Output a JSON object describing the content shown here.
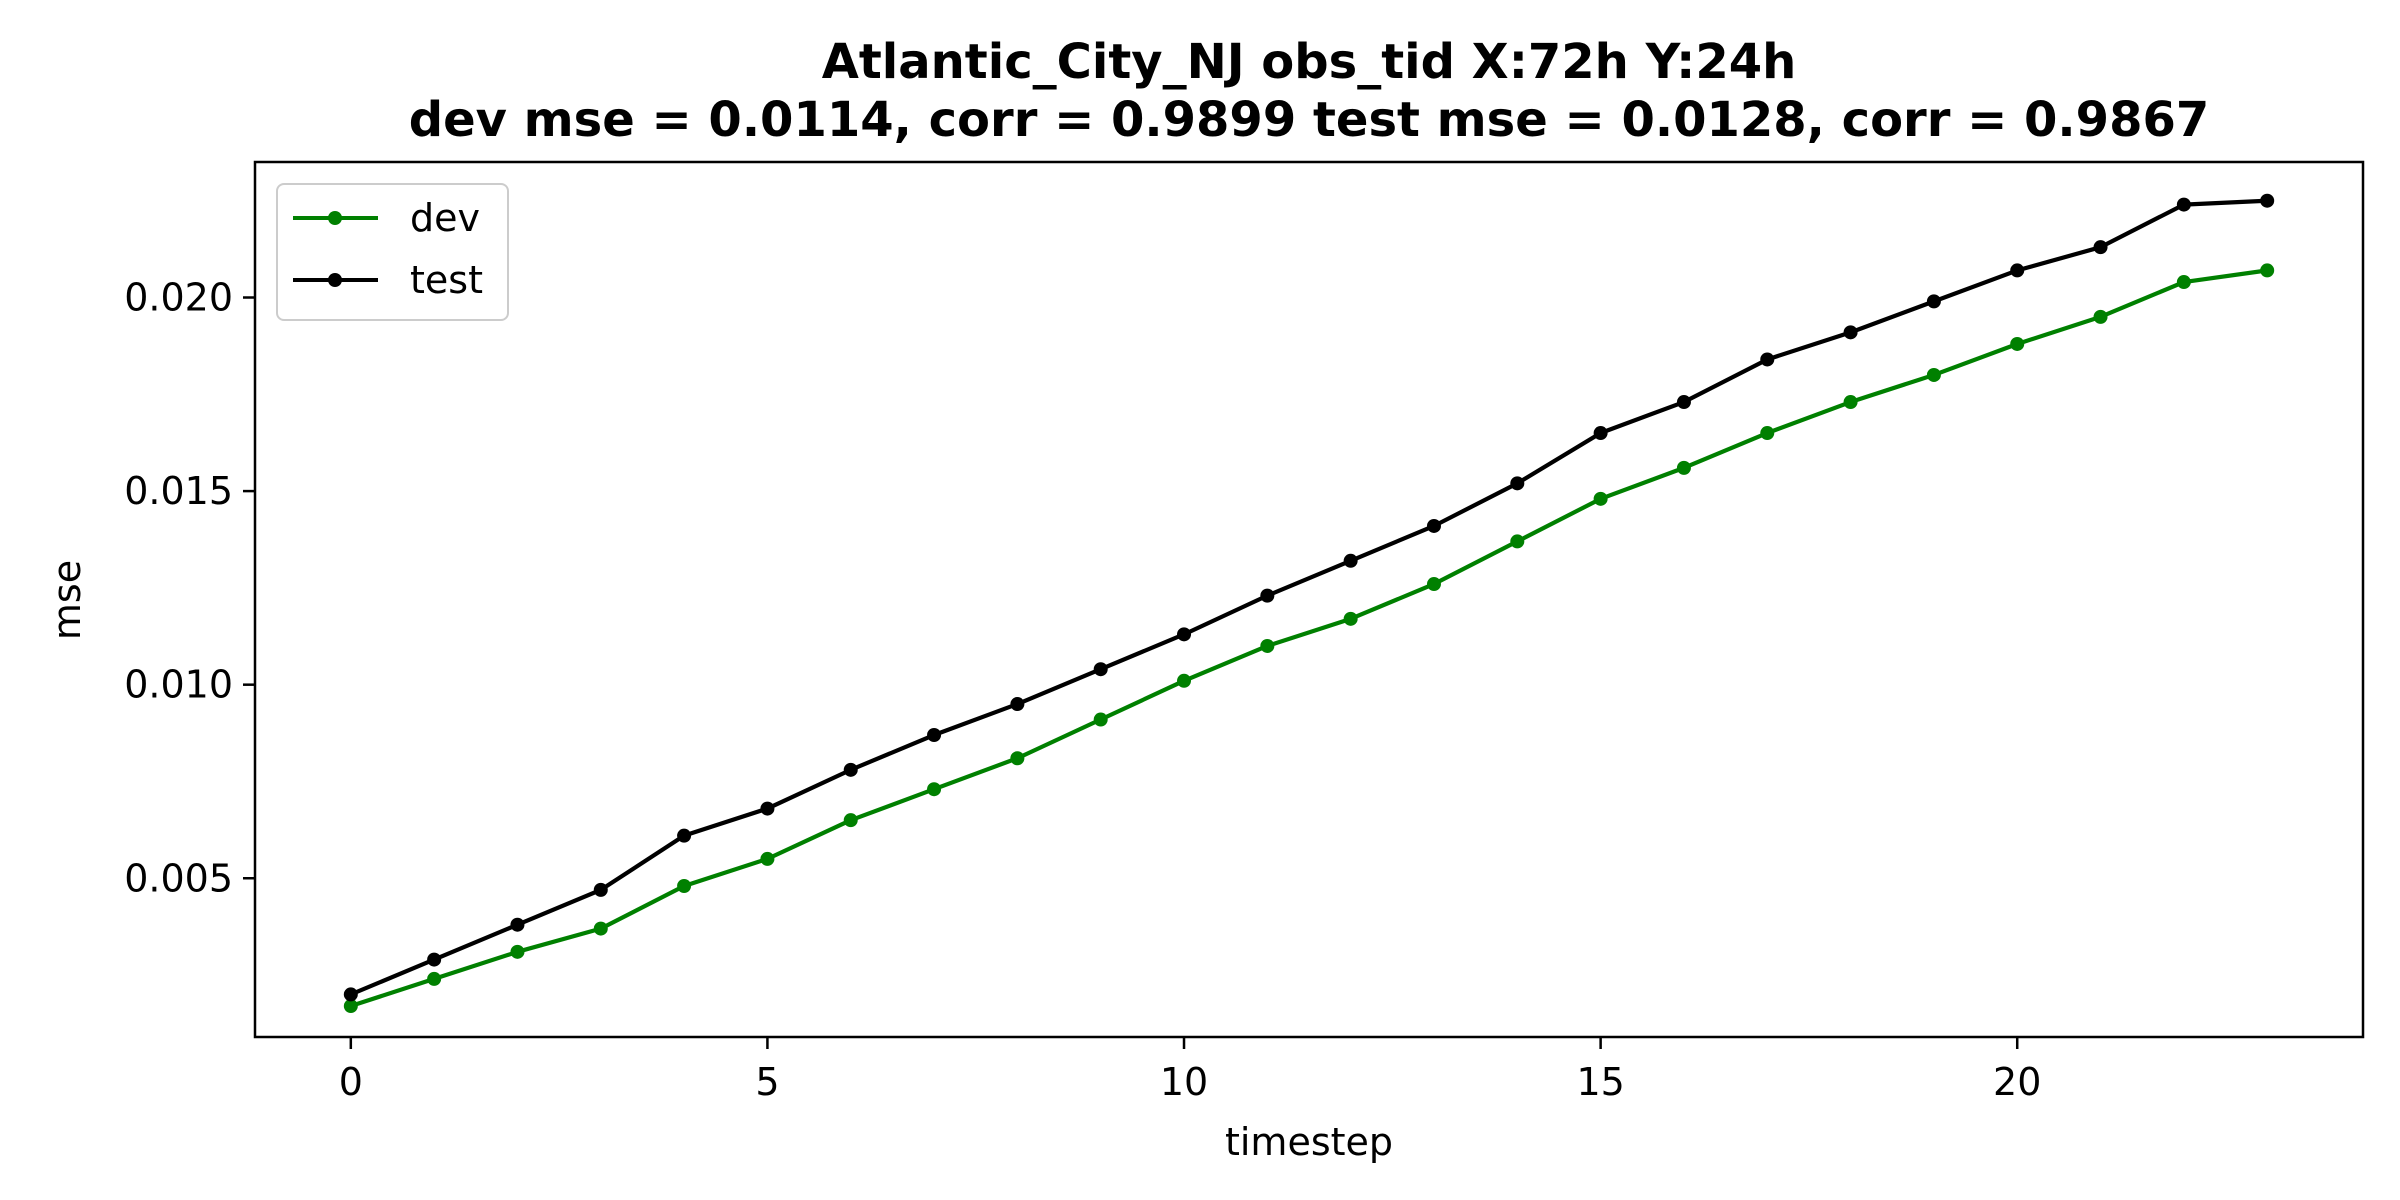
{
  "chart_data": {
    "type": "line",
    "title_line1": "Atlantic_City_NJ   obs_tid   X:72h   Y:24h",
    "title_line2": "dev mse = 0.0114, corr = 0.9899   test mse = 0.0128, corr = 0.9867",
    "xlabel": "timestep",
    "ylabel": "mse",
    "xlim": [
      -1.15,
      24.15
    ],
    "ylim": [
      0.0009,
      0.0235
    ],
    "xticks": [
      0,
      5,
      10,
      15,
      20
    ],
    "xtick_labels": [
      "0",
      "5",
      "10",
      "15",
      "20"
    ],
    "yticks": [
      0.005,
      0.01,
      0.015,
      0.02
    ],
    "ytick_labels": [
      "0.005",
      "0.010",
      "0.015",
      "0.020"
    ],
    "grid": false,
    "legend_position": "top-left",
    "x": [
      0,
      1,
      2,
      3,
      4,
      5,
      6,
      7,
      8,
      9,
      10,
      11,
      12,
      13,
      14,
      15,
      16,
      17,
      18,
      19,
      20,
      21,
      22,
      23
    ],
    "series": [
      {
        "name": "dev",
        "color": "#008000",
        "values": [
          0.0017,
          0.0024,
          0.0031,
          0.0037,
          0.0048,
          0.0055,
          0.0065,
          0.0073,
          0.0081,
          0.0091,
          0.0101,
          0.011,
          0.0117,
          0.0126,
          0.0137,
          0.0148,
          0.0156,
          0.0165,
          0.0173,
          0.018,
          0.0188,
          0.0195,
          0.0204,
          0.0207
        ]
      },
      {
        "name": "test",
        "color": "#000000",
        "values": [
          0.002,
          0.0029,
          0.0038,
          0.0047,
          0.0061,
          0.0068,
          0.0078,
          0.0087,
          0.0095,
          0.0104,
          0.0113,
          0.0123,
          0.0132,
          0.0141,
          0.0152,
          0.0165,
          0.0173,
          0.0184,
          0.0191,
          0.0199,
          0.0207,
          0.0213,
          0.0224,
          0.0225
        ]
      }
    ]
  }
}
